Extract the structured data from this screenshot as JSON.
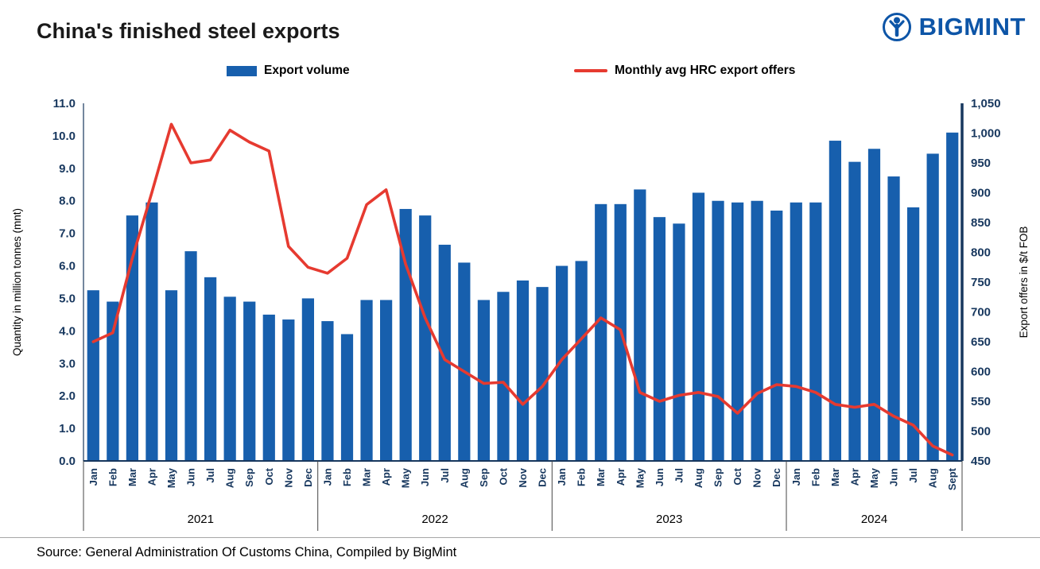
{
  "header": {
    "title": "China's finished steel exports",
    "logo_text": "BIGMINT"
  },
  "legend": {
    "bar_label": "Export volume",
    "line_label": "Monthly avg HRC export offers"
  },
  "source": "Source: General Administration Of Customs China, Compiled by BigMint",
  "colors": {
    "bar": "#175fad",
    "line": "#e63a30",
    "axis": "#17375e",
    "logo": "#0d55a7",
    "separator": "#444444"
  },
  "chart_data": {
    "type": "bar",
    "title": "China's finished steel exports",
    "ylabel_left": "Quantity in million tonnes (mnt)",
    "ylabel_right": "Export offers in $/t FOB",
    "legend_position": "top",
    "grid": false,
    "y_left": {
      "min": 0,
      "max": 11,
      "step": 1,
      "ticks": [
        "0.0",
        "1.0",
        "2.0",
        "3.0",
        "4.0",
        "5.0",
        "6.0",
        "7.0",
        "8.0",
        "9.0",
        "10.0",
        "11.0"
      ]
    },
    "y_right": {
      "min": 450,
      "max": 1050,
      "step": 50,
      "ticks": [
        "450",
        "500",
        "550",
        "600",
        "650",
        "700",
        "750",
        "800",
        "850",
        "900",
        "950",
        "1,000",
        "1,050"
      ]
    },
    "groups": [
      {
        "label": "2021",
        "months": [
          "Jan",
          "Feb",
          "Mar",
          "Apr",
          "May",
          "Jun",
          "Jul",
          "Aug",
          "Sep",
          "Oct",
          "Nov",
          "Dec"
        ]
      },
      {
        "label": "2022",
        "months": [
          "Jan",
          "Feb",
          "Mar",
          "Apr",
          "May",
          "Jun",
          "Jul",
          "Aug",
          "Sep",
          "Oct",
          "Nov",
          "Dec"
        ]
      },
      {
        "label": "2023",
        "months": [
          "Jan",
          "Feb",
          "Mar",
          "Apr",
          "May",
          "Jun",
          "Jul",
          "Aug",
          "Sep",
          "Oct",
          "Nov",
          "Dec"
        ]
      },
      {
        "label": "2024",
        "months": [
          "Jan",
          "Feb",
          "Mar",
          "Apr",
          "May",
          "Jun",
          "Jul",
          "Aug",
          "Sept"
        ]
      }
    ],
    "series": [
      {
        "name": "Export volume",
        "type": "bar",
        "axis": "left",
        "values": [
          5.25,
          4.9,
          7.55,
          7.95,
          5.25,
          6.45,
          5.65,
          5.05,
          4.9,
          4.5,
          4.35,
          5.0,
          4.3,
          3.9,
          4.95,
          4.95,
          7.75,
          7.55,
          6.65,
          6.1,
          4.95,
          5.2,
          5.55,
          5.35,
          6.0,
          6.15,
          7.9,
          7.9,
          8.35,
          7.5,
          7.3,
          8.25,
          8.0,
          7.95,
          8.0,
          7.7,
          7.95,
          7.95,
          9.85,
          9.2,
          9.6,
          8.75,
          7.8,
          9.45,
          10.1
        ]
      },
      {
        "name": "Monthly avg HRC export offers",
        "type": "line",
        "axis": "right",
        "values": [
          650,
          665,
          790,
          900,
          1015,
          950,
          955,
          1005,
          985,
          970,
          810,
          775,
          765,
          790,
          880,
          905,
          780,
          690,
          620,
          600,
          580,
          582,
          545,
          575,
          620,
          655,
          690,
          670,
          565,
          550,
          560,
          565,
          558,
          530,
          563,
          578,
          575,
          565,
          545,
          540,
          545,
          525,
          510,
          475,
          460
        ]
      }
    ]
  }
}
